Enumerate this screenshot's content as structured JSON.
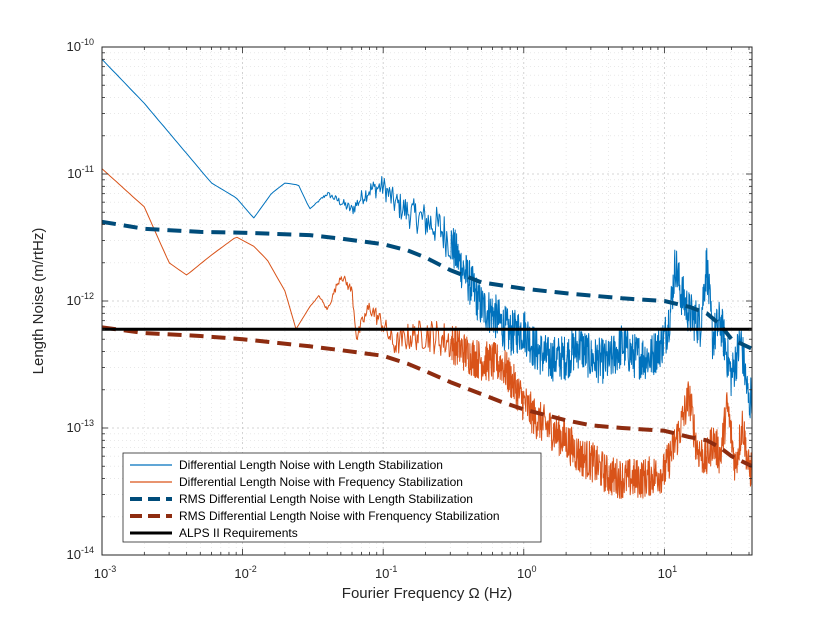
{
  "chart_data": {
    "type": "line",
    "xscale": "log",
    "yscale": "log",
    "xlim": [
      0.001,
      42
    ],
    "ylim": [
      1e-14,
      1e-10
    ],
    "grid": true,
    "minor_grid": true,
    "legend_placement": "bottom-left",
    "xlabel": "Fourier Frequency Ω (Hz)",
    "ylabel": "Length Noise (m/rtHz)",
    "x_tick_values": [
      0.001,
      0.01,
      0.1,
      1,
      10
    ],
    "x_tick_labels": [
      {
        "base": "10",
        "exp": "-3"
      },
      {
        "base": "10",
        "exp": "-2"
      },
      {
        "base": "10",
        "exp": "-1"
      },
      {
        "base": "10",
        "exp": "0"
      },
      {
        "base": "10",
        "exp": "1"
      }
    ],
    "y_tick_values": [
      1e-14,
      1e-13,
      1e-12,
      1e-11,
      1e-10
    ],
    "y_tick_labels": [
      {
        "base": "10",
        "exp": "-14"
      },
      {
        "base": "10",
        "exp": "-13"
      },
      {
        "base": "10",
        "exp": "-12"
      },
      {
        "base": "10",
        "exp": "-11"
      },
      {
        "base": "10",
        "exp": "-10"
      }
    ],
    "series": [
      {
        "name": "Differential Length Noise with Length Stabilization",
        "color": "#0072BD",
        "style": "solid",
        "noise": 0.18,
        "x": [
          0.001,
          0.002,
          0.006,
          0.009,
          0.012,
          0.016,
          0.02,
          0.025,
          0.03,
          0.04,
          0.05,
          0.06,
          0.07,
          0.08,
          0.1,
          0.12,
          0.15,
          0.2,
          0.25,
          0.3,
          0.35,
          0.4,
          0.5,
          0.6,
          0.7,
          0.8,
          1.0,
          1.2,
          1.5,
          2.0,
          2.5,
          3.0,
          4.0,
          5.0,
          6.0,
          8.0,
          10.0,
          11.0,
          12.0,
          13.0,
          15.0,
          18.0,
          20.0,
          22.0,
          25.0,
          30.0,
          35.0,
          40.0,
          42.0
        ],
        "y": [
          8e-11,
          3.6e-11,
          8.5e-12,
          6.5e-12,
          4.5e-12,
          7e-12,
          8.5e-12,
          8.2e-12,
          5.3e-12,
          7e-12,
          6e-12,
          5.2e-12,
          6.5e-12,
          7.5e-12,
          8e-12,
          6e-12,
          5e-12,
          4.3e-12,
          3.8e-12,
          3e-12,
          2e-12,
          1.5e-12,
          9e-13,
          8e-13,
          6.5e-13,
          5.5e-13,
          6e-13,
          4.2e-13,
          3.5e-13,
          3.6e-13,
          4.5e-13,
          3.5e-13,
          3.3e-13,
          4.5e-13,
          3.7e-13,
          3.6e-13,
          5e-13,
          8e-13,
          2e-12,
          1.2e-12,
          8e-13,
          6.5e-13,
          2e-12,
          5e-13,
          7e-13,
          2.5e-13,
          5e-13,
          1.5e-13,
          2e-13
        ]
      },
      {
        "name": "Differential Length Noise with Frequency Stabilization",
        "color": "#D95319",
        "style": "solid",
        "noise": 0.16,
        "x": [
          0.001,
          0.002,
          0.003,
          0.004,
          0.006,
          0.009,
          0.012,
          0.015,
          0.02,
          0.024,
          0.03,
          0.035,
          0.04,
          0.05,
          0.06,
          0.065,
          0.07,
          0.08,
          0.1,
          0.12,
          0.15,
          0.2,
          0.3,
          0.4,
          0.5,
          0.7,
          1.0,
          1.2,
          1.5,
          2.0,
          2.5,
          3.0,
          4.0,
          5.0,
          7.0,
          10.0,
          13.0,
          15.0,
          17.0,
          20.0,
          22.0,
          25.0,
          28.0,
          32.0,
          36.0,
          40.0,
          42.0
        ],
        "y": [
          1.1e-11,
          5.5e-12,
          2e-12,
          1.6e-12,
          2.3e-12,
          3.2e-12,
          2.7e-12,
          2.1e-12,
          1.2e-12,
          6e-13,
          9e-13,
          1.1e-12,
          8.5e-13,
          1.6e-12,
          1.2e-12,
          5e-13,
          6.5e-13,
          9e-13,
          6.5e-13,
          4.5e-13,
          5.2e-13,
          5.5e-13,
          4.8e-13,
          3.8e-13,
          3.4e-13,
          3.2e-13,
          1.6e-13,
          1.2e-13,
          1e-13,
          8e-14,
          6e-14,
          5.5e-14,
          4.2e-14,
          4e-14,
          4e-14,
          4.5e-14,
          1e-13,
          1.8e-13,
          7e-14,
          5.5e-14,
          8e-14,
          6e-14,
          1.5e-13,
          5e-14,
          1.1e-13,
          4.5e-14,
          5e-14
        ]
      },
      {
        "name": "RMS Differential Length Noise with Length Stabilization",
        "color": "#004C7A",
        "style": "dashed",
        "noise": 0,
        "x": [
          0.001,
          0.002,
          0.005,
          0.01,
          0.03,
          0.05,
          0.1,
          0.15,
          0.2,
          0.3,
          0.5,
          1,
          2,
          5,
          10,
          15,
          20,
          25,
          30,
          42
        ],
        "y": [
          4.2e-12,
          3.7e-12,
          3.5e-12,
          3.45e-12,
          3.3e-12,
          3.1e-12,
          2.8e-12,
          2.5e-12,
          2.2e-12,
          1.75e-12,
          1.4e-12,
          1.25e-12,
          1.15e-12,
          1.05e-12,
          1e-12,
          9e-13,
          8e-13,
          6.5e-13,
          5e-13,
          4.2e-13
        ]
      },
      {
        "name": "RMS Differential Length Noise with Frenquency Stabilization",
        "color": "#8E2C10",
        "style": "dashed",
        "noise": 0,
        "x": [
          0.001,
          0.002,
          0.005,
          0.01,
          0.03,
          0.05,
          0.1,
          0.15,
          0.2,
          0.3,
          0.5,
          0.7,
          1,
          1.5,
          2,
          3,
          5,
          10,
          15,
          20,
          25,
          30,
          42
        ],
        "y": [
          6.2e-13,
          5.6e-13,
          5.3e-13,
          5e-13,
          4.4e-13,
          4.1e-13,
          3.7e-13,
          3.2e-13,
          2.8e-13,
          2.3e-13,
          1.85e-13,
          1.6e-13,
          1.4e-13,
          1.25e-13,
          1.15e-13,
          1.05e-13,
          1e-13,
          9.5e-14,
          8.5e-14,
          8e-14,
          7e-14,
          6e-14,
          5e-14
        ]
      },
      {
        "name": "ALPS II Requirements",
        "color": "#000000",
        "style": "solid-thick",
        "noise": 0,
        "x": [
          0.001,
          42
        ],
        "y": [
          6e-13,
          6e-13
        ]
      }
    ]
  }
}
